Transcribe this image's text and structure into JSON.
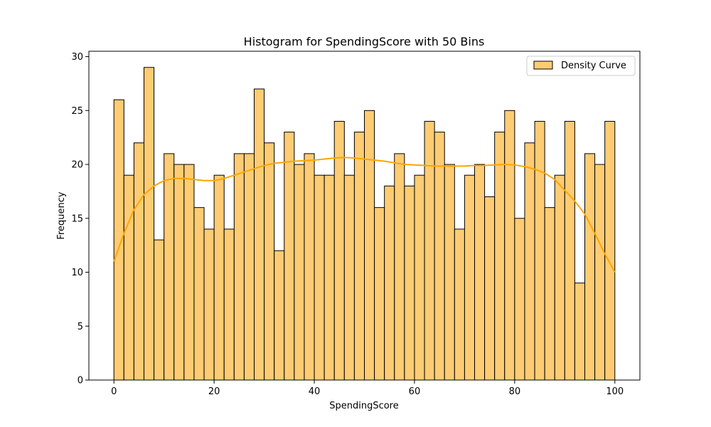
{
  "chart_data": {
    "type": "bar",
    "title": "Histogram for SpendingScore with 50 Bins",
    "xlabel": "SpendingScore",
    "ylabel": "Frequency",
    "xlim": [
      -5,
      105
    ],
    "ylim": [
      0,
      30.5
    ],
    "x_ticks": [
      0,
      20,
      40,
      60,
      80,
      100
    ],
    "y_ticks": [
      0,
      5,
      10,
      15,
      20,
      25,
      30
    ],
    "bin_start": 0,
    "bin_width": 2,
    "values": [
      26,
      19,
      22,
      29,
      13,
      21,
      20,
      20,
      16,
      14,
      19,
      14,
      21,
      21,
      27,
      22,
      12,
      23,
      20,
      21,
      19,
      19,
      24,
      19,
      23,
      25,
      16,
      18,
      21,
      18,
      19,
      24,
      23,
      20,
      14,
      19,
      20,
      17,
      23,
      25,
      15,
      22,
      24,
      16,
      19,
      24,
      9,
      21,
      20,
      24
    ],
    "density_curve": {
      "x": [
        0,
        2,
        4,
        6,
        8,
        10,
        12,
        14,
        16,
        18,
        20,
        22,
        24,
        26,
        28,
        30,
        32,
        34,
        36,
        38,
        40,
        42,
        44,
        46,
        48,
        50,
        52,
        54,
        56,
        58,
        60,
        62,
        64,
        66,
        68,
        70,
        72,
        74,
        76,
        78,
        80,
        82,
        84,
        86,
        88,
        90,
        92,
        94,
        96,
        98,
        100
      ],
      "y": [
        11,
        13.6,
        15.8,
        17.2,
        18.0,
        18.5,
        18.7,
        18.7,
        18.6,
        18.5,
        18.5,
        18.7,
        19.0,
        19.3,
        19.6,
        19.9,
        20.1,
        20.2,
        20.3,
        20.35,
        20.4,
        20.5,
        20.6,
        20.65,
        20.6,
        20.5,
        20.4,
        20.3,
        20.15,
        20.0,
        19.95,
        19.9,
        19.85,
        19.85,
        19.85,
        19.85,
        19.9,
        19.9,
        19.95,
        20.0,
        19.95,
        19.8,
        19.55,
        19.2,
        18.6,
        17.6,
        16.6,
        15.4,
        13.6,
        11.7,
        10
      ]
    },
    "legend": {
      "position": "top-right",
      "entries": [
        "Density Curve"
      ]
    },
    "grid": false
  },
  "colors": {
    "bar_fill": "#ffcc73",
    "bar_edge": "#000000",
    "curve": "#ffa500",
    "axis": "#000000"
  }
}
